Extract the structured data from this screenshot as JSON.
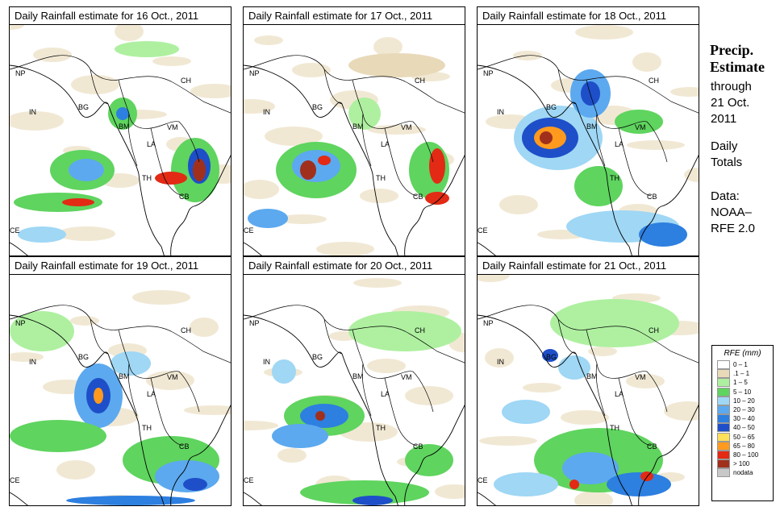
{
  "panels": [
    {
      "title": "Daily Rainfall estimate for  16 Oct., 2011"
    },
    {
      "title": "Daily Rainfall estimate for  17 Oct., 2011"
    },
    {
      "title": "Daily Rainfall estimate for  18 Oct., 2011"
    },
    {
      "title": "Daily Rainfall estimate for  19 Oct., 2011"
    },
    {
      "title": "Daily Rainfall estimate for  20 Oct., 2011"
    },
    {
      "title": "Daily Rainfall estimate for  21 Oct., 2011"
    }
  ],
  "country_labels": {
    "np": "NP",
    "in": "IN",
    "bg": "BG",
    "bm": "BM",
    "ch": "CH",
    "vm": "VM",
    "la": "LA",
    "th": "TH",
    "cb": "CB",
    "ce": "CE"
  },
  "side": {
    "title_line1": "Precip.",
    "title_line2": "Estimate",
    "through": "through",
    "date_line1": "21 Oct.",
    "date_line2": "2011",
    "daily_line1": "Daily",
    "daily_line2": "Totals",
    "data_line1": "Data:",
    "data_line2": "NOAA–",
    "data_line3": "RFE 2.0"
  },
  "legend": {
    "title": "RFE (mm)",
    "items": [
      {
        "label": "0 – 1",
        "color": "#ffffff"
      },
      {
        "label": ".1 – 1",
        "color": "#e8d9b8"
      },
      {
        "label": "1 – 5",
        "color": "#aef0a0"
      },
      {
        "label": "5 – 10",
        "color": "#5fd45f"
      },
      {
        "label": "10 – 20",
        "color": "#9fd7f5"
      },
      {
        "label": "20 – 30",
        "color": "#5ca9ef"
      },
      {
        "label": "30 – 40",
        "color": "#2d7fe0"
      },
      {
        "label": "40 – 50",
        "color": "#1e4fc8"
      },
      {
        "label": "50 – 65",
        "color": "#ffe05a"
      },
      {
        "label": "65 – 80",
        "color": "#ff9a1e"
      },
      {
        "label": "80 – 100",
        "color": "#e22a14"
      },
      {
        "label": "> 100",
        "color": "#a0301c"
      },
      {
        "label": "nodata",
        "color": "#c8c8c8"
      }
    ]
  }
}
